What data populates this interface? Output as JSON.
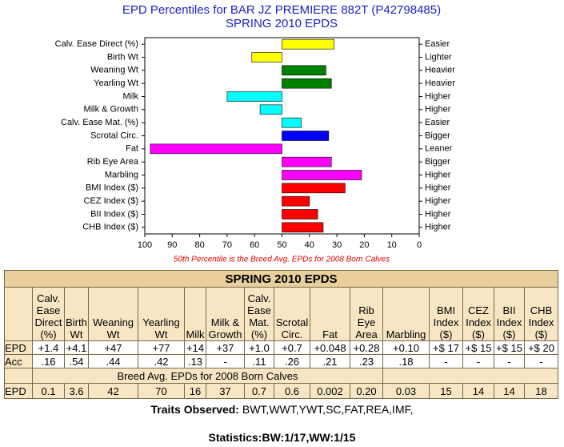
{
  "chart_data": {
    "type": "bar",
    "orientation": "horizontal",
    "title": "EPD Percentiles for BAR JZ PREMIERE 882T (P42798485)",
    "subtitle": "SPRING 2010 EPDS",
    "categories": [
      "Calv. Ease Direct (%)",
      "Birth Wt",
      "Weaning Wt",
      "Yearling Wt",
      "Milk",
      "Milk & Growth",
      "Calv. Ease Mat. (%)",
      "Scrotal Circ.",
      "Fat",
      "Rib Eye Area",
      "Marbling",
      "BMI Index ($)",
      "CEZ Index ($)",
      "BII Index ($)",
      "CHB Index ($)"
    ],
    "values": [
      31,
      61,
      34,
      32,
      70,
      58,
      43,
      33,
      98,
      32,
      21,
      27,
      40,
      37,
      35
    ],
    "colors": [
      "#ffff00",
      "#ffff00",
      "#008000",
      "#008000",
      "#00ffff",
      "#00ffff",
      "#00ffff",
      "#0000ff",
      "#ff00ff",
      "#ff00ff",
      "#ff00ff",
      "#ff0000",
      "#ff0000",
      "#ff0000",
      "#ff0000"
    ],
    "right_labels": [
      "Easier",
      "Lighter",
      "Heavier",
      "Heavier",
      "Higher",
      "Higher",
      "Easier",
      "Bigger",
      "Leaner",
      "Bigger",
      "Higher",
      "Higher",
      "Higher",
      "Higher",
      "Higher"
    ],
    "baseline": 50,
    "xlim": [
      100,
      0
    ],
    "xticks": [
      100,
      90,
      80,
      70,
      60,
      50,
      40,
      30,
      20,
      10,
      0
    ],
    "note": "50th Percentile is the Breed Avg. EPDs for 2008 Born Calves"
  },
  "table": {
    "title": "SPRING 2010 EPDS",
    "columns": [
      "Calv. Ease Direct (%)",
      "Birth Wt",
      "Weaning Wt",
      "Yearling Wt",
      "Milk",
      "Milk & Growth",
      "Calv. Ease Mat. (%)",
      "Scrotal Circ.",
      "Fat",
      "Rib Eye Area",
      "Marbling",
      "BMI Index ($)",
      "CEZ Index ($)",
      "BII Index ($)",
      "CHB Index ($)"
    ],
    "rows": [
      [
        "EPD",
        "+1.4",
        "+4.1",
        "+47",
        "+77",
        "+14",
        "+37",
        "+1.0",
        "+0.7",
        "+0.048",
        "+0.28",
        "+0.10",
        "+$ 17",
        "+$ 15",
        "+$ 15",
        "+$ 20"
      ],
      [
        "Acc",
        ".16",
        ".54",
        ".44",
        ".42",
        ".13",
        "-",
        ".11",
        ".26",
        ".21",
        ".23",
        ".18",
        "-",
        "-",
        "-",
        "-"
      ]
    ],
    "breed_title": "Breed Avg. EPDs for 2008 Born Calves",
    "breed_rows": [
      [
        "EPD",
        "0.1",
        "3.6",
        "42",
        "70",
        "16",
        "37",
        "0.7",
        "0.6",
        "0.002",
        "0.20",
        "0.03",
        "15",
        "14",
        "14",
        "18"
      ]
    ]
  },
  "footer": {
    "traits_label": "Traits Observed:",
    "traits": "BWT,WWT,YWT,SC,FAT,REA,IMF,",
    "stats_label": "Statistics:",
    "stats": "BW:1/17,WW:1/15"
  }
}
